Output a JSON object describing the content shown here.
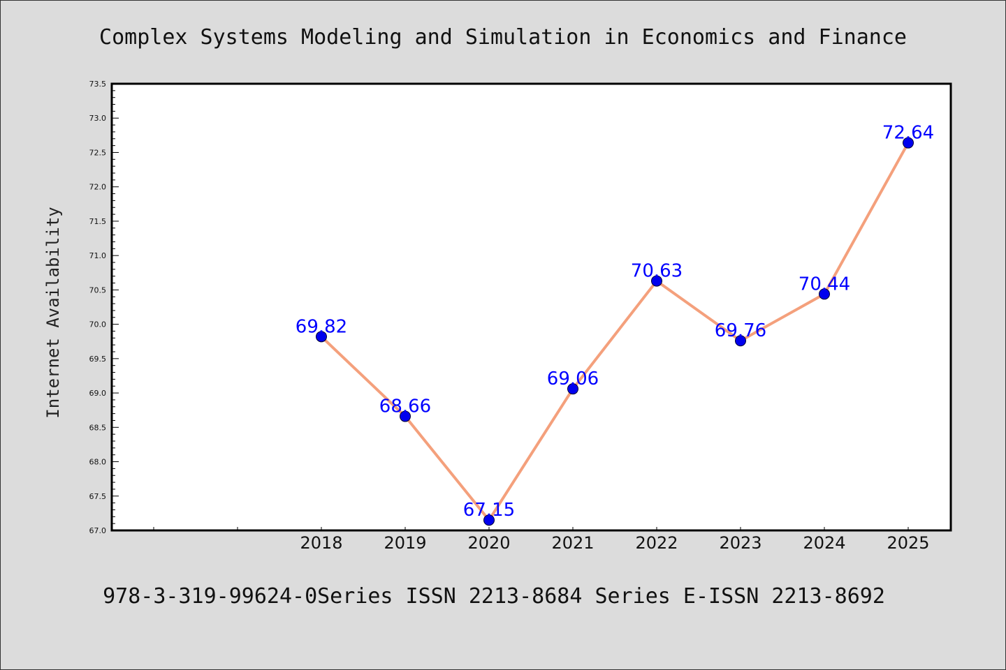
{
  "chart_data": {
    "type": "line",
    "title": "Complex Systems Modeling and Simulation in Economics and Finance",
    "ylabel": "Internet Availability",
    "xlabel": "",
    "footer": "978-3-319-99624-0Series ISSN 2213-8684 Series E-ISSN 2213-8692",
    "categories": [
      "2018",
      "2019",
      "2020",
      "2021",
      "2022",
      "2023",
      "2024",
      "2025"
    ],
    "series": [
      {
        "values": [
          69.82,
          68.66,
          67.15,
          69.06,
          70.63,
          69.76,
          70.44,
          72.64
        ],
        "labels": [
          "69.82",
          "68.66",
          "67.15",
          "69.06",
          "70.63",
          "69.76",
          "70.44",
          "72.64"
        ]
      }
    ],
    "ylim": [
      67.0,
      73.5
    ],
    "yticks": [
      "67.0",
      "67.5",
      "68.0",
      "68.5",
      "69.0",
      "69.5",
      "70.0",
      "70.5",
      "71.0",
      "71.5",
      "72.0",
      "72.5",
      "73.0",
      "73.5"
    ],
    "grid": false,
    "colors": {
      "line": "#f4a07c",
      "marker": "#0000ee",
      "label": "#0000ff",
      "plot_background": "#ffffff",
      "figure_background": "#dcdcdc"
    }
  }
}
